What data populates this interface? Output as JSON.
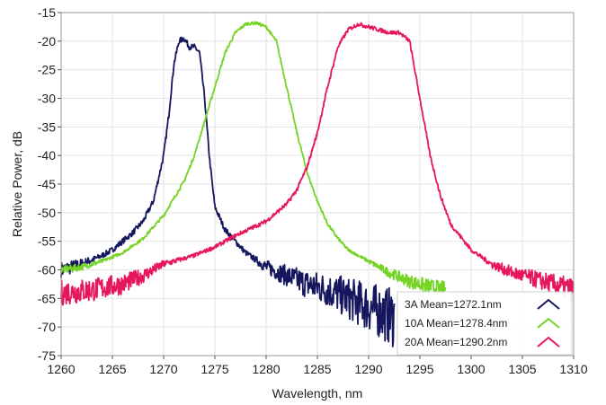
{
  "chart_data": {
    "type": "line",
    "title": "",
    "xlabel": "Wavelength, nm",
    "ylabel": "Relative Power, dB",
    "xlim": [
      1260,
      1310
    ],
    "ylim": [
      -75,
      -15
    ],
    "xticks": [
      1260,
      1265,
      1270,
      1275,
      1280,
      1285,
      1290,
      1295,
      1300,
      1305,
      1310
    ],
    "yticks": [
      -15,
      -20,
      -25,
      -30,
      -35,
      -40,
      -45,
      -50,
      -55,
      -60,
      -65,
      -70,
      -75
    ],
    "grid": true,
    "legend_position": "bottom-right",
    "series": [
      {
        "name": "3A Mean=1272.1nm",
        "color": "#14165e",
        "noise": 0.5,
        "points": [
          [
            1260,
            -60.0
          ],
          [
            1262,
            -59.0
          ],
          [
            1264,
            -57.5
          ],
          [
            1265,
            -56.5
          ],
          [
            1266,
            -55.0
          ],
          [
            1267,
            -53.5
          ],
          [
            1268,
            -51.5
          ],
          [
            1269,
            -48.0
          ],
          [
            1270,
            -40.0
          ],
          [
            1270.5,
            -33.0
          ],
          [
            1271,
            -24.0
          ],
          [
            1271.5,
            -20.0
          ],
          [
            1272,
            -19.5
          ],
          [
            1272.5,
            -21.0
          ],
          [
            1273,
            -21.0
          ],
          [
            1273.5,
            -22.0
          ],
          [
            1274,
            -30.0
          ],
          [
            1274.5,
            -41.0
          ],
          [
            1275,
            -49.0
          ],
          [
            1276,
            -53.0
          ],
          [
            1278,
            -57.0
          ],
          [
            1280,
            -59.5
          ],
          [
            1282,
            -61.0
          ],
          [
            1284,
            -62.5
          ],
          [
            1286,
            -63.5
          ],
          [
            1288,
            -65.0
          ],
          [
            1290,
            -66.5
          ],
          [
            1292,
            -68.0
          ],
          [
            1292.5,
            -68.5
          ]
        ]
      },
      {
        "name": "10A Mean=1278.4nm",
        "color": "#74d424",
        "noise": 0.25,
        "points": [
          [
            1260,
            -60.0
          ],
          [
            1262,
            -59.5
          ],
          [
            1264,
            -58.5
          ],
          [
            1266,
            -57.0
          ],
          [
            1268,
            -54.5
          ],
          [
            1270,
            -50.5
          ],
          [
            1272,
            -44.5
          ],
          [
            1273,
            -40.0
          ],
          [
            1274,
            -34.0
          ],
          [
            1275,
            -28.0
          ],
          [
            1276,
            -22.0
          ],
          [
            1277,
            -18.5
          ],
          [
            1278,
            -17.0
          ],
          [
            1279,
            -16.8
          ],
          [
            1280,
            -17.5
          ],
          [
            1281,
            -20.0
          ],
          [
            1282,
            -28.0
          ],
          [
            1283,
            -36.0
          ],
          [
            1284,
            -43.0
          ],
          [
            1285,
            -48.0
          ],
          [
            1286,
            -52.0
          ],
          [
            1287,
            -54.5
          ],
          [
            1288,
            -56.5
          ],
          [
            1290,
            -58.5
          ],
          [
            1292,
            -60.5
          ],
          [
            1294,
            -62.0
          ],
          [
            1296,
            -63.0
          ],
          [
            1297.5,
            -63.5
          ]
        ]
      },
      {
        "name": "20A Mean=1290.2nm",
        "color": "#e8175d",
        "noise": 0.35,
        "points": [
          [
            1260,
            -64.0
          ],
          [
            1263,
            -63.5
          ],
          [
            1266,
            -62.5
          ],
          [
            1268,
            -61.0
          ],
          [
            1270,
            -59.0
          ],
          [
            1273,
            -57.5
          ],
          [
            1275,
            -56.0
          ],
          [
            1277,
            -54.0
          ],
          [
            1280,
            -51.5
          ],
          [
            1282,
            -48.5
          ],
          [
            1283,
            -46.0
          ],
          [
            1284,
            -42.0
          ],
          [
            1285,
            -36.0
          ],
          [
            1286,
            -28.0
          ],
          [
            1287,
            -21.0
          ],
          [
            1288,
            -18.0
          ],
          [
            1289,
            -17.0
          ],
          [
            1290,
            -17.5
          ],
          [
            1292,
            -18.5
          ],
          [
            1293,
            -18.5
          ],
          [
            1294,
            -20.0
          ],
          [
            1295,
            -30.0
          ],
          [
            1296,
            -40.0
          ],
          [
            1297,
            -47.0
          ],
          [
            1298,
            -52.0
          ],
          [
            1300,
            -56.5
          ],
          [
            1302,
            -59.0
          ],
          [
            1304,
            -60.5
          ],
          [
            1306,
            -61.5
          ],
          [
            1308,
            -62.5
          ],
          [
            1310,
            -63.5
          ]
        ]
      }
    ]
  }
}
